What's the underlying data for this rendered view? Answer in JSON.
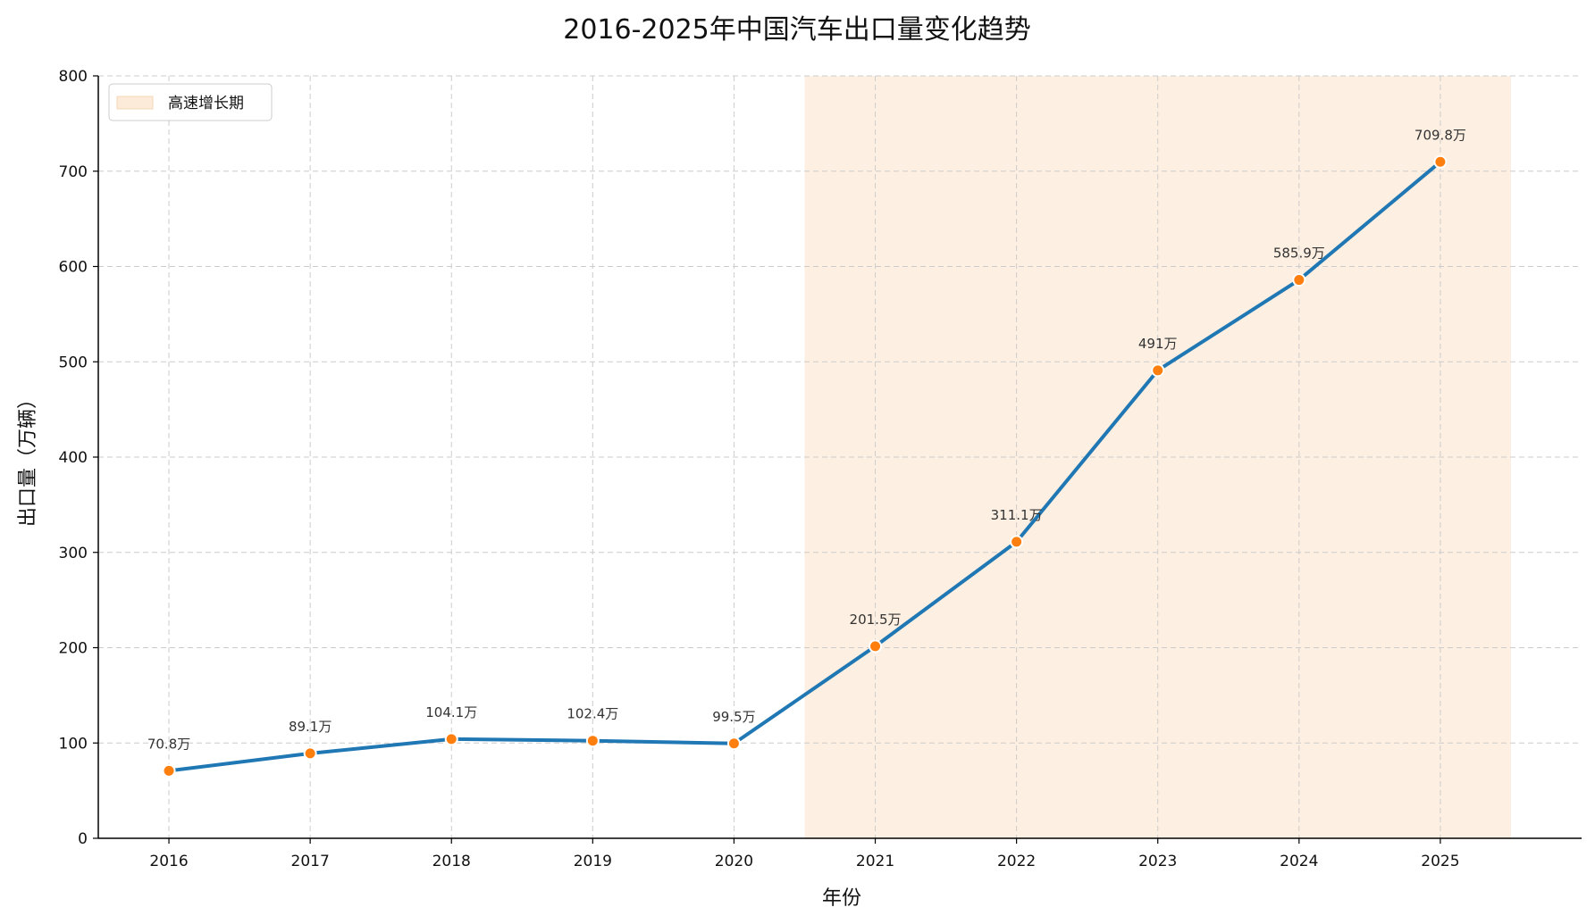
{
  "chart_data": {
    "type": "line",
    "title": "2016-2025年中国汽车出口量变化趋势",
    "xlabel": "年份",
    "ylabel": "出口量（万辆）",
    "categories": [
      "2016",
      "2017",
      "2018",
      "2019",
      "2020",
      "2021",
      "2022",
      "2023",
      "2024",
      "2025"
    ],
    "series": [
      {
        "values": [
          70.8,
          89.1,
          104.1,
          102.4,
          99.5,
          201.5,
          311.1,
          491,
          585.9,
          709.8
        ],
        "data_labels": [
          "70.8万",
          "89.1万",
          "104.1万",
          "102.4万",
          "99.5万",
          "201.5万",
          "311.1万",
          "491万",
          "585.9万",
          "709.8万"
        ],
        "line_color": "#1f77b4",
        "marker_color": "#ff7f0e"
      }
    ],
    "highlight_band": {
      "label": "高速增长期",
      "from": 2020.5,
      "to": 2025.5,
      "color": "#fdebd9"
    },
    "ylim": [
      0,
      800
    ],
    "yticks": [
      "0",
      "100",
      "200",
      "300",
      "400",
      "500",
      "600",
      "700",
      "800"
    ],
    "grid": true,
    "legend_position": "top-left"
  }
}
